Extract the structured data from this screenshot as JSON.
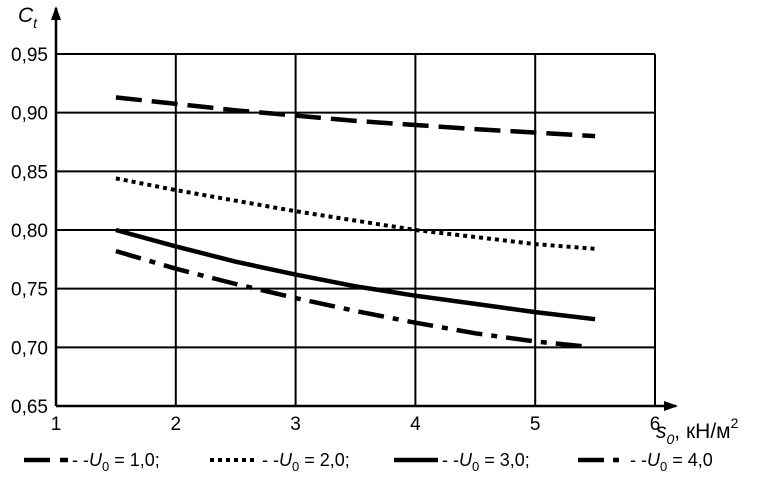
{
  "chart_data": {
    "type": "line",
    "title": "",
    "xlabel": {
      "main": "s",
      "sub": "0",
      "unit": ", кН/м",
      "sup": "2"
    },
    "ylabel": {
      "main": "C",
      "sub": "t"
    },
    "xlim": [
      1,
      6
    ],
    "ylim": [
      0.65,
      0.95
    ],
    "x_ticks": [
      "1",
      "2",
      "3",
      "4",
      "5",
      "6"
    ],
    "y_ticks": [
      "0,65",
      "0,70",
      "0,75",
      "0,80",
      "0,85",
      "0,90",
      "0,95"
    ],
    "grid": true,
    "legend_position": "bottom",
    "series": [
      {
        "id": "u1",
        "legend": {
          "prefix": "- -",
          "var": "U",
          "sub": "0",
          "value": " = 1,0;"
        },
        "style": "dashed",
        "x": [
          1.5,
          2.5,
          3.5,
          4.5,
          5.5
        ],
        "y": [
          0.913,
          0.902,
          0.893,
          0.886,
          0.88
        ]
      },
      {
        "id": "u2",
        "legend": {
          "prefix": "- -",
          "var": "U",
          "sub": "0",
          "value": " = 2,0;"
        },
        "style": "dotted",
        "x": [
          1.5,
          2.0,
          2.5,
          3.0,
          3.5,
          4.0,
          4.5,
          5.0,
          5.5
        ],
        "y": [
          0.844,
          0.834,
          0.825,
          0.816,
          0.808,
          0.8,
          0.794,
          0.788,
          0.784
        ]
      },
      {
        "id": "u3",
        "legend": {
          "prefix": "- -",
          "var": "U",
          "sub": "0",
          "value": " = 3,0;"
        },
        "style": "solid",
        "x": [
          1.5,
          2.0,
          2.5,
          3.0,
          3.5,
          4.0,
          4.5,
          5.0,
          5.5
        ],
        "y": [
          0.8,
          0.786,
          0.773,
          0.762,
          0.752,
          0.744,
          0.737,
          0.73,
          0.724
        ]
      },
      {
        "id": "u4",
        "legend": {
          "prefix": "- -",
          "var": "U",
          "sub": "0",
          "value": " = 4,0"
        },
        "style": "dashdot",
        "x": [
          1.5,
          2.0,
          2.5,
          3.0,
          3.5,
          4.0,
          4.5,
          5.0,
          5.4
        ],
        "y": [
          0.782,
          0.767,
          0.754,
          0.742,
          0.731,
          0.721,
          0.712,
          0.705,
          0.701
        ]
      }
    ]
  }
}
